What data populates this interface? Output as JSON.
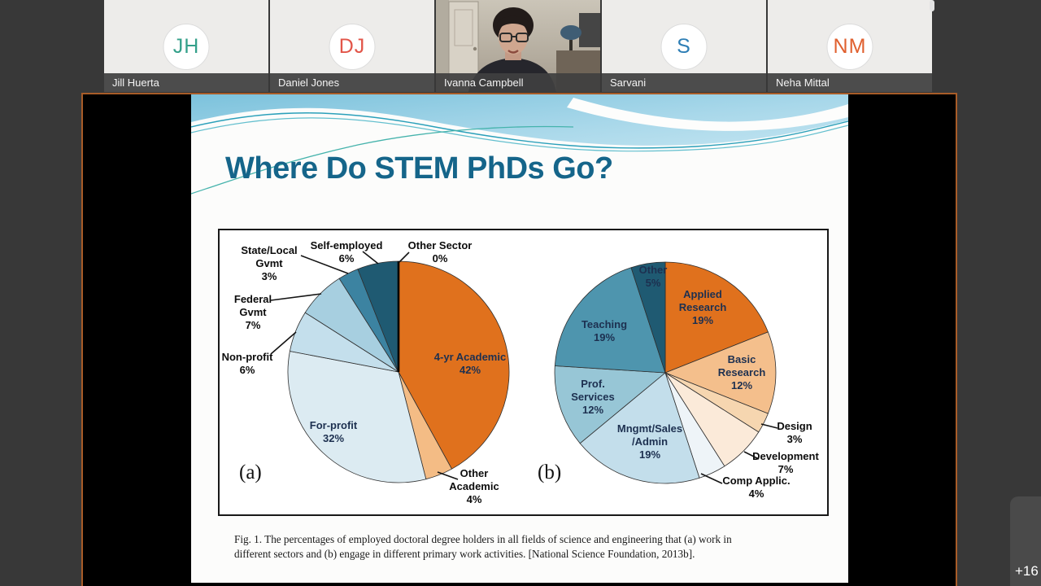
{
  "meeting": {
    "participants": [
      {
        "initials": "JH",
        "name": "Jill Huerta",
        "color": "#34a08a",
        "type": "avatar"
      },
      {
        "initials": "DJ",
        "name": "Daniel Jones",
        "color": "#e25549",
        "type": "avatar"
      },
      {
        "initials": "",
        "name": "Ivanna Campbell",
        "color": "",
        "type": "video"
      },
      {
        "initials": "S",
        "name": "Sarvani",
        "color": "#2d7eb5",
        "type": "avatar"
      },
      {
        "initials": "NM",
        "name": "Neha Mittal",
        "color": "#e0602f",
        "type": "avatar"
      }
    ],
    "overflow_badge": "+16"
  },
  "slide": {
    "title": "Where Do STEM PhDs Go?",
    "title_color": "#15658a",
    "caption": "Fig. 1. The percentages of employed doctoral degree holders in all fields of science and engineering that (a) work in different sectors and (b) engage in different primary work activities. [National Science Foundation, 2013b]."
  },
  "chart_data": [
    {
      "type": "pie",
      "panel": "(a)",
      "description": "Work sectors of employed doctoral degree holders",
      "slices": [
        {
          "name": "4-yr Academic",
          "value": 42,
          "color": "#e0711d",
          "label_lines": [
            "4-yr Academic",
            "42%"
          ]
        },
        {
          "name": "Other Academic",
          "value": 4,
          "color": "#f4bc85",
          "label_lines": [
            "Other",
            "Academic",
            "4%"
          ]
        },
        {
          "name": "For-profit",
          "value": 32,
          "color": "#dcebf2",
          "label_lines": [
            "For-profit",
            "32%"
          ]
        },
        {
          "name": "Non-profit",
          "value": 6,
          "color": "#c4dfec",
          "label_lines": [
            "Non-profit",
            "6%"
          ]
        },
        {
          "name": "Federal Gvmt",
          "value": 7,
          "color": "#a7cfe0",
          "label_lines": [
            "Federal",
            "Gvmt",
            "7%"
          ]
        },
        {
          "name": "State/Local Gvmt",
          "value": 3,
          "color": "#3c83a1",
          "label_lines": [
            "State/Local",
            "Gvmt",
            "3%"
          ]
        },
        {
          "name": "Self-employed",
          "value": 6,
          "color": "#1f5a72",
          "label_lines": [
            "Self-employed",
            "6%"
          ]
        },
        {
          "name": "Other Sector",
          "value": 0,
          "color": "#000000",
          "label_lines": [
            "Other Sector",
            "0%"
          ]
        }
      ]
    },
    {
      "type": "pie",
      "panel": "(b)",
      "description": "Primary work activities of employed doctoral degree holders",
      "slices": [
        {
          "name": "Applied Research",
          "value": 19,
          "color": "#e0711d",
          "label_lines": [
            "Applied",
            "Research",
            "19%"
          ]
        },
        {
          "name": "Basic Research",
          "value": 12,
          "color": "#f4bf8c",
          "label_lines": [
            "Basic",
            "Research",
            "12%"
          ]
        },
        {
          "name": "Design",
          "value": 3,
          "color": "#f6d6b0",
          "label_lines": [
            "Design",
            "3%"
          ]
        },
        {
          "name": "Development",
          "value": 7,
          "color": "#fbead9",
          "label_lines": [
            "Development",
            "7%"
          ]
        },
        {
          "name": "Comp Applic.",
          "value": 4,
          "color": "#eef4f8",
          "label_lines": [
            "Comp Applic.",
            "4%"
          ]
        },
        {
          "name": "Mngmt/Sales/Admin",
          "value": 19,
          "color": "#c3deeb",
          "label_lines": [
            "Mngmt/Sales",
            "/Admin",
            "19%"
          ]
        },
        {
          "name": "Prof. Services",
          "value": 12,
          "color": "#97c6d6",
          "label_lines": [
            "Prof.",
            "Services",
            "12%"
          ]
        },
        {
          "name": "Teaching",
          "value": 19,
          "color": "#4e95ae",
          "label_lines": [
            "Teaching",
            "19%"
          ]
        },
        {
          "name": "Other",
          "value": 5,
          "color": "#1f5a72",
          "label_lines": [
            "Other",
            "5%"
          ]
        }
      ]
    }
  ]
}
